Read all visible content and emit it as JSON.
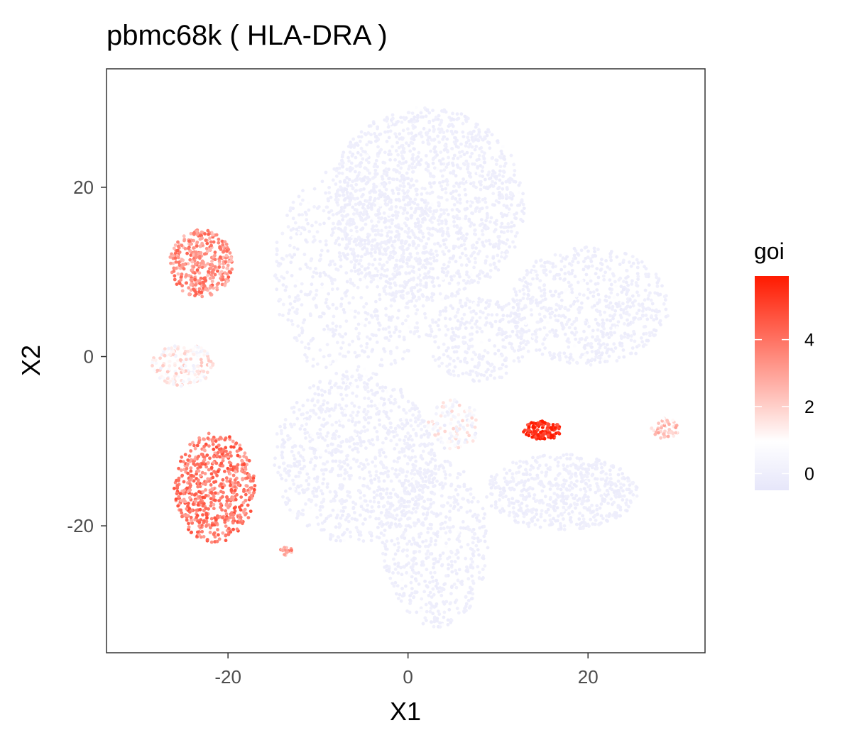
{
  "chart_data": {
    "type": "scatter",
    "title": "pbmc68k ( HLA-DRA )",
    "xlabel": "X1",
    "ylabel": "X2",
    "xlim": [
      -33.5,
      33
    ],
    "ylim": [
      -35,
      34
    ],
    "x_ticks": [
      -20,
      0,
      20
    ],
    "x_tick_labels": [
      "-20",
      "0",
      "20"
    ],
    "y_ticks": [
      -20,
      0,
      20
    ],
    "y_tick_labels": [
      "-20",
      "0",
      "20"
    ],
    "grid": false,
    "legend": {
      "title": "goi",
      "placement": "right",
      "range": [
        -0.5,
        5.9
      ],
      "ticks": [
        0,
        2,
        4
      ],
      "tick_labels": [
        "0",
        "2",
        "4"
      ],
      "colors": {
        "low": "#e6e6fa",
        "mid": "#ffffff",
        "high": "#ff1a00"
      },
      "midpoint": 1
    },
    "clusters": [
      {
        "name": "",
        "cx": 2,
        "cy": 18,
        "rx": 11,
        "ry": 11.5,
        "value": 0,
        "count": 1500
      },
      {
        "name": "",
        "cx": -6,
        "cy": 10,
        "rx": 9,
        "ry": 13,
        "value": 0,
        "count": 700
      },
      {
        "name": "",
        "cx": 20,
        "cy": 6,
        "rx": 9,
        "ry": 7,
        "value": 0,
        "count": 700
      },
      {
        "name": "",
        "cx": 8,
        "cy": 2,
        "rx": 6,
        "ry": 5,
        "value": 0,
        "count": 300
      },
      {
        "name": "",
        "cx": -6,
        "cy": -12,
        "rx": 9,
        "ry": 10,
        "value": 0,
        "count": 900
      },
      {
        "name": "",
        "cx": 3,
        "cy": -22,
        "rx": 6,
        "ry": 10,
        "value": 0,
        "count": 600
      },
      {
        "name": "",
        "cx": 17,
        "cy": -16,
        "rx": 8.5,
        "ry": 4.5,
        "value": 0,
        "count": 600
      },
      {
        "name": "",
        "cx": 5,
        "cy": -8,
        "rx": 3,
        "ry": 3,
        "value": 0.8,
        "count": 120
      },
      {
        "name": "",
        "cx": -23,
        "cy": 11,
        "rx": 3.5,
        "ry": 4,
        "value": 3.4,
        "count": 350
      },
      {
        "name": "",
        "cx": -25,
        "cy": -1,
        "rx": 3.5,
        "ry": 2.5,
        "value": 1.2,
        "count": 200
      },
      {
        "name": "",
        "cx": -21.5,
        "cy": -15.5,
        "rx": 4.5,
        "ry": 6.5,
        "value": 3.8,
        "count": 600
      },
      {
        "name": "",
        "cx": 15,
        "cy": -8.7,
        "rx": 2.2,
        "ry": 1.1,
        "value": 5.6,
        "count": 120
      },
      {
        "name": "",
        "cx": 28.5,
        "cy": -8.5,
        "rx": 1.6,
        "ry": 1.2,
        "value": 2.0,
        "count": 50
      },
      {
        "name": "",
        "cx": -13.5,
        "cy": -23,
        "rx": 0.7,
        "ry": 0.6,
        "value": 3.0,
        "count": 15
      }
    ]
  }
}
